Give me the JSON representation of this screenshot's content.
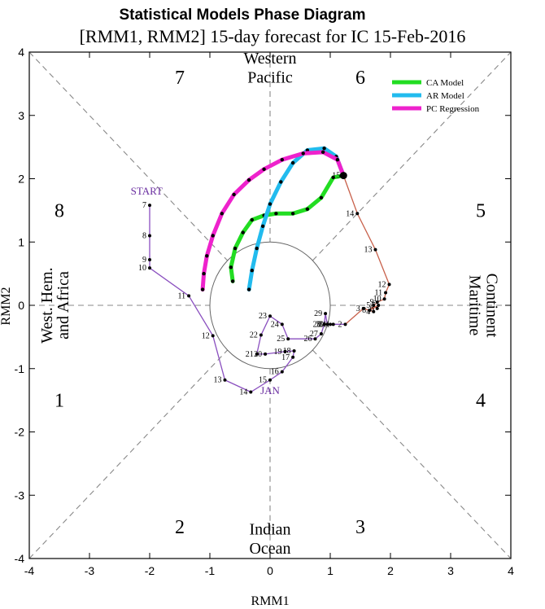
{
  "chart_data": {
    "type": "line",
    "title": "Statistical Models Phase Diagram",
    "subtitle": "[RMM1, RMM2] 15-day forecast for IC 15-Feb-2016",
    "xlabel": "RMM1",
    "ylabel": "RMM2",
    "xlim": [
      -4,
      4
    ],
    "ylim": [
      -4,
      4
    ],
    "xticks": [
      -4,
      -3,
      -2,
      -1,
      0,
      1,
      2,
      3,
      4
    ],
    "yticks": [
      -4,
      -3,
      -2,
      -1,
      0,
      1,
      2,
      3,
      4
    ],
    "grid": false,
    "legend_position": "top-right",
    "colors": {
      "observed": "#8a4fbf",
      "observed_recent": "#c8604a",
      "ca_model": "#22dd22",
      "ar_model": "#22bbee",
      "pc_regression": "#ee22cc",
      "guides": "#888888",
      "circle": "#666666"
    },
    "phase_numbers": [
      {
        "label": "1",
        "x": -3.5,
        "y": -1.5
      },
      {
        "label": "2",
        "x": -1.5,
        "y": -3.5
      },
      {
        "label": "3",
        "x": 1.5,
        "y": -3.5
      },
      {
        "label": "4",
        "x": 3.5,
        "y": -1.5
      },
      {
        "label": "5",
        "x": 3.5,
        "y": 1.5
      },
      {
        "label": "6",
        "x": 1.5,
        "y": 3.6
      },
      {
        "label": "7",
        "x": -1.5,
        "y": 3.6
      },
      {
        "label": "8",
        "x": -3.5,
        "y": 1.5
      }
    ],
    "regions": {
      "top": [
        "Western",
        "Pacific"
      ],
      "bottom": [
        "Indian",
        "Ocean"
      ],
      "left": [
        "West. Hem.",
        "and Africa"
      ],
      "right": [
        "Maritime",
        "Continent"
      ]
    },
    "annotations": [
      {
        "text": "START",
        "x": -2.05,
        "y": 1.75
      },
      {
        "text": "JAN",
        "x": 0.0,
        "y": -1.4
      }
    ],
    "observed": [
      {
        "label": "7",
        "x": -2.0,
        "y": 1.58
      },
      {
        "label": "8",
        "x": -2.0,
        "y": 1.1
      },
      {
        "label": "9",
        "x": -2.0,
        "y": 0.72
      },
      {
        "label": "10",
        "x": -2.0,
        "y": 0.59
      },
      {
        "label": "11",
        "x": -1.35,
        "y": 0.15
      },
      {
        "label": "12",
        "x": -0.95,
        "y": -0.48
      },
      {
        "label": "13",
        "x": -0.75,
        "y": -1.18
      },
      {
        "label": "14",
        "x": -0.32,
        "y": -1.37
      },
      {
        "label": "15",
        "x": 0.0,
        "y": -1.18
      },
      {
        "label": "16",
        "x": 0.2,
        "y": -1.05
      },
      {
        "label": "17",
        "x": 0.38,
        "y": -0.82
      },
      {
        "label": "18",
        "x": 0.4,
        "y": -0.72
      },
      {
        "label": "19",
        "x": 0.25,
        "y": -0.73
      },
      {
        "label": "20",
        "x": -0.08,
        "y": -0.77
      },
      {
        "label": "21",
        "x": -0.22,
        "y": -0.77
      },
      {
        "label": "22",
        "x": -0.15,
        "y": -0.47
      },
      {
        "label": "23",
        "x": 0.0,
        "y": -0.17
      },
      {
        "label": "24",
        "x": 0.2,
        "y": -0.3
      },
      {
        "label": "25",
        "x": 0.3,
        "y": -0.53
      },
      {
        "label": "26",
        "x": 0.75,
        "y": -0.53
      },
      {
        "label": "27",
        "x": 0.85,
        "y": -0.45
      },
      {
        "label": "28",
        "x": 0.9,
        "y": -0.3
      },
      {
        "label": "29",
        "x": 0.92,
        "y": -0.13
      },
      {
        "label": "30",
        "x": 0.95,
        "y": -0.3
      },
      {
        "label": "31",
        "x": 1.0,
        "y": -0.3
      },
      {
        "label": "1",
        "x": 1.05,
        "y": -0.3
      },
      {
        "label": "2",
        "x": 1.25,
        "y": -0.3
      },
      {
        "label": "3",
        "x": 1.55,
        "y": -0.05
      },
      {
        "label": "4",
        "x": 1.72,
        "y": -0.1
      },
      {
        "label": "5",
        "x": 1.72,
        "y": 0.0
      },
      {
        "label": "6",
        "x": 1.78,
        "y": -0.05
      },
      {
        "label": "7",
        "x": 1.8,
        "y": 0.0
      },
      {
        "label": "8",
        "x": 1.65,
        "y": -0.08
      },
      {
        "label": "9",
        "x": 1.78,
        "y": 0.05
      },
      {
        "label": "10",
        "x": 1.9,
        "y": 0.1
      },
      {
        "label": "11",
        "x": 1.92,
        "y": 0.2
      },
      {
        "label": "12",
        "x": 1.98,
        "y": 0.33
      },
      {
        "label": "13",
        "x": 1.75,
        "y": 0.88
      },
      {
        "label": "14",
        "x": 1.45,
        "y": 1.45
      },
      {
        "label": "15",
        "x": 1.22,
        "y": 2.05
      }
    ],
    "observed_recent_from_index": 26,
    "series": [
      {
        "name": "CA Model",
        "x": [
          1.22,
          1.05,
          0.85,
          0.62,
          0.38,
          0.1,
          -0.1,
          -0.3,
          -0.45,
          -0.58,
          -0.65,
          -0.62
        ],
        "y": [
          2.05,
          2.02,
          1.7,
          1.52,
          1.45,
          1.45,
          1.42,
          1.35,
          1.15,
          0.9,
          0.6,
          0.38
        ]
      },
      {
        "name": "AR Model",
        "x": [
          1.22,
          1.1,
          0.9,
          0.62,
          0.38,
          0.18,
          0.0,
          -0.12,
          -0.22,
          -0.3,
          -0.35
        ],
        "y": [
          2.05,
          2.35,
          2.48,
          2.45,
          2.25,
          1.95,
          1.6,
          1.25,
          0.9,
          0.55,
          0.25
        ]
      },
      {
        "name": "PC Regression",
        "x": [
          1.22,
          1.12,
          0.88,
          0.55,
          0.2,
          -0.1,
          -0.35,
          -0.6,
          -0.8,
          -0.95,
          -1.05,
          -1.1,
          -1.12
        ],
        "y": [
          2.05,
          2.3,
          2.42,
          2.4,
          2.3,
          2.15,
          1.98,
          1.75,
          1.45,
          1.1,
          0.78,
          0.5,
          0.25
        ]
      }
    ]
  }
}
